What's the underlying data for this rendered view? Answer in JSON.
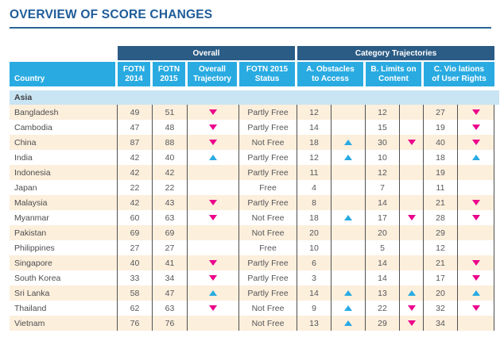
{
  "page": {
    "title": "OVERVIEW OF SCORE CHANGES"
  },
  "colors": {
    "title_blue": "#1E5C99",
    "navy_band": "#2B5C85",
    "header_cyan": "#29ABE2",
    "row_peach": "#FCEFDC",
    "section_light_blue": "#C9E4F3",
    "decline_pink": "#EC008C",
    "improvement_cyan": "#29ABE2"
  },
  "table": {
    "groups": {
      "overall": "Overall",
      "category": "Category Trajectories"
    },
    "headers": {
      "country": "Country",
      "fotn2014": "FOTN\n2014",
      "fotn2015": "FOTN\n2015",
      "overall_trajectory": "Overall\nTrajectory",
      "status": "FOTN 2015\nStatus",
      "a": "A. Obstacles\nto Access",
      "b": "B. Limits on\nContent",
      "c": "C. Vio lations\nof User Rights"
    },
    "section": "Asia",
    "trajectory_legend": {
      "down": "score decline (pink down arrow)",
      "up": "score improvement (cyan up arrow)"
    },
    "rows": [
      {
        "country": "Bangladesh",
        "fotn2014": "49",
        "fotn2015": "51",
        "overall": "down",
        "status": "Partly Free",
        "a": "12",
        "a_t": "",
        "b": "12",
        "b_t": "",
        "c": "27",
        "c_t": "down"
      },
      {
        "country": "Cambodia",
        "fotn2014": "47",
        "fotn2015": "48",
        "overall": "down",
        "status": "Partly Free",
        "a": "14",
        "a_t": "",
        "b": "15",
        "b_t": "",
        "c": "19",
        "c_t": "down"
      },
      {
        "country": "China",
        "fotn2014": "87",
        "fotn2015": "88",
        "overall": "down",
        "status": "Not Free",
        "a": "18",
        "a_t": "up",
        "b": "30",
        "b_t": "down",
        "c": "40",
        "c_t": "down"
      },
      {
        "country": "India",
        "fotn2014": "42",
        "fotn2015": "40",
        "overall": "up",
        "status": "Partly Free",
        "a": "12",
        "a_t": "up",
        "b": "10",
        "b_t": "",
        "c": "18",
        "c_t": "up"
      },
      {
        "country": "Indonesia",
        "fotn2014": "42",
        "fotn2015": "42",
        "overall": "",
        "status": "Partly Free",
        "a": "11",
        "a_t": "",
        "b": "12",
        "b_t": "",
        "c": "19",
        "c_t": ""
      },
      {
        "country": "Japan",
        "fotn2014": "22",
        "fotn2015": "22",
        "overall": "",
        "status": "Free",
        "a": "4",
        "a_t": "",
        "b": "7",
        "b_t": "",
        "c": "11",
        "c_t": ""
      },
      {
        "country": "Malaysia",
        "fotn2014": "42",
        "fotn2015": "43",
        "overall": "down",
        "status": "Partly Free",
        "a": "8",
        "a_t": "",
        "b": "14",
        "b_t": "",
        "c": "21",
        "c_t": "down"
      },
      {
        "country": "Myanmar",
        "fotn2014": "60",
        "fotn2015": "63",
        "overall": "down",
        "status": "Not Free",
        "a": "18",
        "a_t": "up",
        "b": "17",
        "b_t": "down",
        "c": "28",
        "c_t": "down"
      },
      {
        "country": "Pakistan",
        "fotn2014": "69",
        "fotn2015": "69",
        "overall": "",
        "status": "Not Free",
        "a": "20",
        "a_t": "",
        "b": "20",
        "b_t": "",
        "c": "29",
        "c_t": ""
      },
      {
        "country": "Philippines",
        "fotn2014": "27",
        "fotn2015": "27",
        "overall": "",
        "status": "Free",
        "a": "10",
        "a_t": "",
        "b": "5",
        "b_t": "",
        "c": "12",
        "c_t": ""
      },
      {
        "country": "Singapore",
        "fotn2014": "40",
        "fotn2015": "41",
        "overall": "down",
        "status": "Partly Free",
        "a": "6",
        "a_t": "",
        "b": "14",
        "b_t": "",
        "c": "21",
        "c_t": "down"
      },
      {
        "country": "South Korea",
        "fotn2014": "33",
        "fotn2015": "34",
        "overall": "down",
        "status": "Partly Free",
        "a": "3",
        "a_t": "",
        "b": "14",
        "b_t": "",
        "c": "17",
        "c_t": "down"
      },
      {
        "country": "Sri Lanka",
        "fotn2014": "58",
        "fotn2015": "47",
        "overall": "up",
        "status": "Partly Free",
        "a": "14",
        "a_t": "up",
        "b": "13",
        "b_t": "up",
        "c": "20",
        "c_t": "up"
      },
      {
        "country": "Thailand",
        "fotn2014": "62",
        "fotn2015": "63",
        "overall": "down",
        "status": "Not Free",
        "a": "9",
        "a_t": "up",
        "b": "22",
        "b_t": "down",
        "c": "32",
        "c_t": "down"
      },
      {
        "country": "Vietnam",
        "fotn2014": "76",
        "fotn2015": "76",
        "overall": "",
        "status": "Not Free",
        "a": "13",
        "a_t": "up",
        "b": "29",
        "b_t": "down",
        "c": "34",
        "c_t": ""
      }
    ]
  }
}
